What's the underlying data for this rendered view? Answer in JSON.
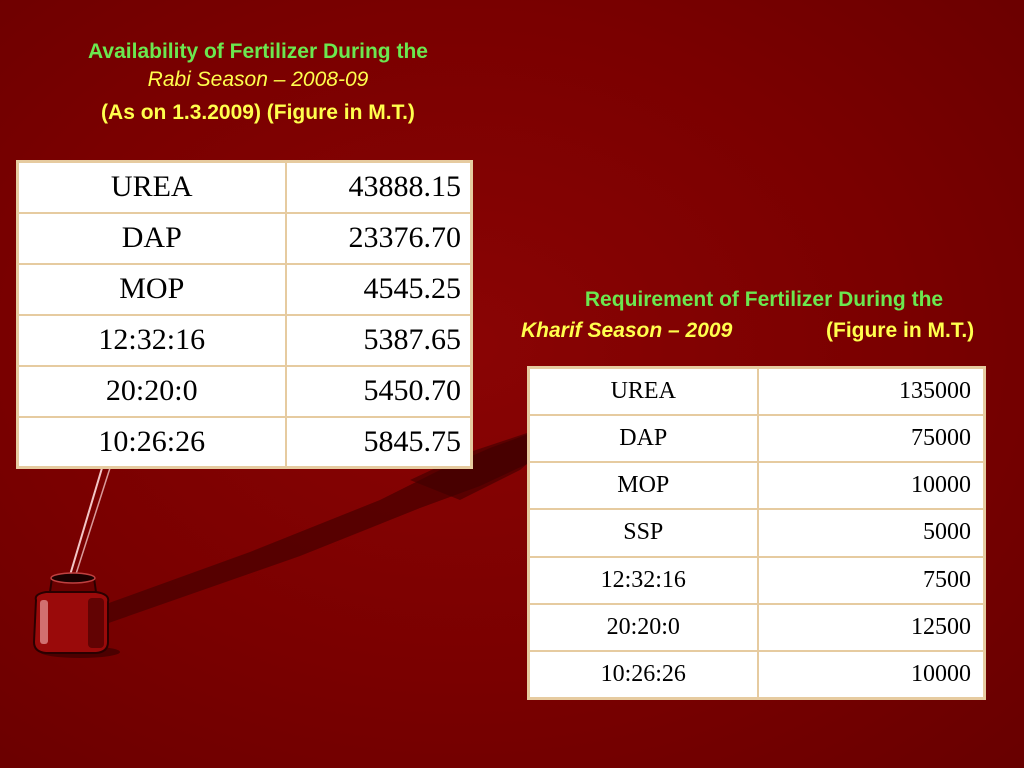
{
  "colors": {
    "background": "#7a0000",
    "title_green": "#6be84f",
    "title_yellow": "#ffff4d",
    "table_border": "#e6cba0"
  },
  "availability": {
    "title_line1": "Availability of Fertilizer During the",
    "title_line2": "Rabi Season – 2008-09",
    "title_line3": "(As on 1.3.2009) (Figure in M.T.)",
    "rows": [
      {
        "fertilizer": "UREA",
        "quantity": "43888.15"
      },
      {
        "fertilizer": "DAP",
        "quantity": "23376.70"
      },
      {
        "fertilizer": "MOP",
        "quantity": "4545.25"
      },
      {
        "fertilizer": "12:32:16",
        "quantity": "5387.65"
      },
      {
        "fertilizer": "20:20:0",
        "quantity": "5450.70"
      },
      {
        "fertilizer": "10:26:26",
        "quantity": "5845.75"
      }
    ]
  },
  "requirement": {
    "title_line1": "Requirement of Fertilizer During the",
    "title_season": "Kharif Season – 2009",
    "title_unit": "(Figure in M.T.)",
    "rows": [
      {
        "fertilizer": "UREA",
        "quantity": "135000"
      },
      {
        "fertilizer": "DAP",
        "quantity": "75000"
      },
      {
        "fertilizer": "MOP",
        "quantity": "10000"
      },
      {
        "fertilizer": "SSP",
        "quantity": "5000"
      },
      {
        "fertilizer": "12:32:16",
        "quantity": "7500"
      },
      {
        "fertilizer": "20:20:0",
        "quantity": "12500"
      },
      {
        "fertilizer": "10:26:26",
        "quantity": "10000"
      }
    ]
  }
}
